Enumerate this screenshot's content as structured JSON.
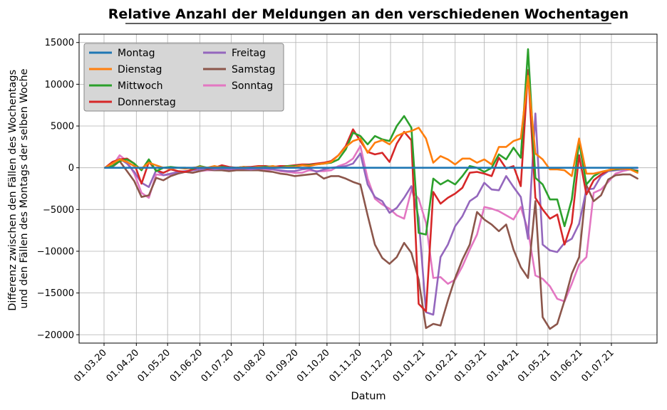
{
  "chart_data": {
    "type": "line",
    "title": "Relative Anzahl der Meldungen an den verschiedenen Wochentagen",
    "xlabel": "Datum",
    "ylabel_line1": "Differenz zwischen den Fällen des Wochentags",
    "ylabel_line2": "und den Fällen des Montags der selben Woche",
    "ylim": [
      -21000,
      16000
    ],
    "yticks": [
      15000,
      10000,
      5000,
      0,
      -5000,
      -10000,
      -15000,
      -20000
    ],
    "ytick_labels": [
      "15000",
      "10000",
      "5000",
      "0",
      "−5000",
      "−10000",
      "−15000",
      "−20000"
    ],
    "xticks": [
      "01.03.20",
      "01.04.20",
      "01.05.20",
      "01.06.20",
      "01.07.20",
      "01.08.20",
      "01.09.20",
      "01.10.20",
      "01.11.20",
      "01.12.20",
      "01.01.21",
      "01.02.21",
      "01.03.21",
      "01.04.21",
      "01.05.21",
      "01.06.21",
      "01.07.21"
    ],
    "grid": true,
    "legend_position": "top-left",
    "x_week_starts": [
      "02.03.20",
      "09.03.20",
      "16.03.20",
      "23.03.20",
      "30.03.20",
      "06.04.20",
      "13.04.20",
      "20.04.20",
      "27.04.20",
      "04.05.20",
      "11.05.20",
      "18.05.20",
      "25.05.20",
      "01.06.20",
      "08.06.20",
      "15.06.20",
      "22.06.20",
      "29.06.20",
      "06.07.20",
      "13.07.20",
      "20.07.20",
      "27.07.20",
      "03.08.20",
      "10.08.20",
      "17.08.20",
      "24.08.20",
      "31.08.20",
      "07.09.20",
      "14.09.20",
      "21.09.20",
      "28.09.20",
      "05.10.20",
      "12.10.20",
      "19.10.20",
      "26.10.20",
      "02.11.20",
      "09.11.20",
      "16.11.20",
      "23.11.20",
      "30.11.20",
      "07.12.20",
      "14.12.20",
      "21.12.20",
      "28.12.20",
      "04.01.21",
      "11.01.21",
      "18.01.21",
      "25.01.21",
      "01.02.21",
      "08.02.21",
      "15.02.21",
      "22.02.21",
      "01.03.21",
      "08.03.21",
      "15.03.21",
      "22.03.21",
      "29.03.21",
      "05.04.21",
      "12.04.21",
      "19.04.21",
      "26.04.21",
      "03.05.21",
      "10.05.21",
      "17.05.21",
      "24.05.21",
      "31.05.21",
      "07.06.21",
      "14.06.21",
      "21.06.21",
      "28.06.21",
      "05.07.21",
      "12.07.21",
      "19.07.21",
      "26.07.21"
    ],
    "series": [
      {
        "name": "Montag",
        "color": "#1f77b4",
        "values": [
          0,
          0,
          0,
          0,
          0,
          0,
          0,
          0,
          0,
          0,
          0,
          0,
          0,
          0,
          0,
          0,
          0,
          0,
          0,
          0,
          0,
          0,
          0,
          0,
          0,
          0,
          0,
          0,
          0,
          0,
          0,
          0,
          0,
          0,
          0,
          0,
          0,
          0,
          0,
          0,
          0,
          0,
          0,
          0,
          0,
          0,
          0,
          0,
          0,
          0,
          0,
          0,
          0,
          0,
          0,
          0,
          0,
          0,
          0,
          0,
          0,
          0,
          0,
          0,
          0,
          0,
          0,
          0,
          0,
          0,
          0,
          0,
          0,
          0
        ]
      },
      {
        "name": "Dienstag",
        "color": "#ff7f0e",
        "values": [
          0,
          500,
          1000,
          700,
          200,
          -100,
          600,
          300,
          0,
          -100,
          0,
          -100,
          0,
          100,
          0,
          200,
          0,
          0,
          0,
          100,
          0,
          100,
          0,
          200,
          0,
          100,
          100,
          300,
          200,
          400,
          500,
          700,
          1500,
          2500,
          3200,
          3500,
          1800,
          3000,
          3300,
          2800,
          3800,
          4200,
          4400,
          4800,
          3500,
          600,
          1400,
          1000,
          400,
          1100,
          1100,
          600,
          1000,
          400,
          2500,
          2500,
          3200,
          3500,
          11000,
          1700,
          1000,
          -200,
          -200,
          -300,
          -1000,
          3500,
          -700,
          -700,
          -500,
          -300,
          -100,
          -100,
          -200,
          -600
        ]
      },
      {
        "name": "Mittwoch",
        "color": "#2ca02c",
        "values": [
          0,
          200,
          800,
          1000,
          500,
          -300,
          1000,
          -400,
          0,
          100,
          0,
          0,
          -100,
          200,
          0,
          100,
          100,
          0,
          0,
          100,
          0,
          100,
          100,
          200,
          0,
          200,
          200,
          300,
          300,
          400,
          500,
          600,
          1000,
          2200,
          4200,
          3800,
          2800,
          3800,
          3400,
          3200,
          5000,
          6200,
          4800,
          -7800,
          -8000,
          -1300,
          -2000,
          -1500,
          -2000,
          -1000,
          200,
          0,
          -500,
          0,
          1600,
          1000,
          2400,
          1200,
          14200,
          -1200,
          -2000,
          -3800,
          -3800,
          -7000,
          -3800,
          3100,
          -2000,
          -1000,
          -500,
          -300,
          -200,
          -100,
          -200,
          -400
        ]
      },
      {
        "name": "Donnerstag",
        "color": "#d62728",
        "values": [
          0,
          700,
          1000,
          1100,
          500,
          -1900,
          700,
          -300,
          -600,
          -200,
          -400,
          -500,
          -200,
          100,
          -100,
          0,
          300,
          100,
          0,
          100,
          100,
          200,
          200,
          100,
          200,
          200,
          300,
          400,
          400,
          500,
          600,
          800,
          1500,
          2600,
          4600,
          3200,
          1900,
          1600,
          1800,
          700,
          2900,
          4300,
          3300,
          -16300,
          -17200,
          -2900,
          -4300,
          -3600,
          -3100,
          -2400,
          -600,
          -500,
          -700,
          -1000,
          1200,
          -100,
          200,
          -2200,
          11700,
          -3600,
          -5000,
          -6100,
          -5600,
          -9200,
          -6600,
          1500,
          -3200,
          -1500,
          -800,
          -300,
          -100,
          -100,
          -200,
          -400
        ]
      },
      {
        "name": "Freitag",
        "color": "#9467bd",
        "values": [
          0,
          100,
          1100,
          500,
          -500,
          -1800,
          -2300,
          -300,
          -900,
          -700,
          -500,
          -400,
          -300,
          -200,
          -100,
          -200,
          -100,
          -200,
          -100,
          -100,
          -200,
          -100,
          -100,
          -200,
          -300,
          -400,
          -400,
          -200,
          -100,
          -500,
          -200,
          0,
          100,
          200,
          500,
          1700,
          -2000,
          -3500,
          -4000,
          -5400,
          -4800,
          -3600,
          -2200,
          -6000,
          -17300,
          -17600,
          -10700,
          -9200,
          -7000,
          -5800,
          -4000,
          -3400,
          -1800,
          -2600,
          -2700,
          -1000,
          -2300,
          -3500,
          -8500,
          6500,
          -9200,
          -9900,
          -10100,
          -9000,
          -8500,
          -6700,
          -2600,
          -2500,
          -1000,
          -400,
          -300,
          -200,
          -200,
          -400
        ]
      },
      {
        "name": "Samstag",
        "color": "#8c564b",
        "values": [
          0,
          100,
          800,
          -400,
          -1600,
          -3500,
          -3300,
          -1200,
          -1500,
          -1000,
          -700,
          -500,
          -600,
          -400,
          -200,
          -300,
          -300,
          -400,
          -300,
          -300,
          -300,
          -300,
          -400,
          -500,
          -700,
          -800,
          -1000,
          -900,
          -800,
          -700,
          -1300,
          -1000,
          -1000,
          -1300,
          -1700,
          -2000,
          -5700,
          -9200,
          -10800,
          -11500,
          -10700,
          -9000,
          -10200,
          -13400,
          -19200,
          -18700,
          -18900,
          -15900,
          -13200,
          -11000,
          -9200,
          -5300,
          -6200,
          -6800,
          -7600,
          -6800,
          -9800,
          -11900,
          -13200,
          -4000,
          -17900,
          -19300,
          -18700,
          -15900,
          -12700,
          -10700,
          -2100,
          -4000,
          -3300,
          -1400,
          -900,
          -800,
          -800,
          -1300
        ]
      },
      {
        "name": "Sonntag",
        "color": "#e377c2",
        "values": [
          0,
          200,
          1500,
          800,
          -700,
          -3000,
          -3600,
          -800,
          -900,
          -800,
          -500,
          -500,
          -600,
          -400,
          -300,
          -300,
          -300,
          -300,
          -300,
          -300,
          -300,
          -300,
          -300,
          -200,
          -400,
          -500,
          -600,
          -600,
          -300,
          -400,
          -400,
          -300,
          200,
          500,
          1100,
          2600,
          -1300,
          -3700,
          -4400,
          -4900,
          -5700,
          -6100,
          -2700,
          -3700,
          -6600,
          -13200,
          -13100,
          -13900,
          -13400,
          -11800,
          -9800,
          -8000,
          -4700,
          -4900,
          -5200,
          -5700,
          -6200,
          -4700,
          -7500,
          -12900,
          -13300,
          -14200,
          -15700,
          -16000,
          -13900,
          -11600,
          -10700,
          -3000,
          -2600,
          -1700,
          -700,
          -400,
          -200,
          -300
        ]
      }
    ]
  }
}
